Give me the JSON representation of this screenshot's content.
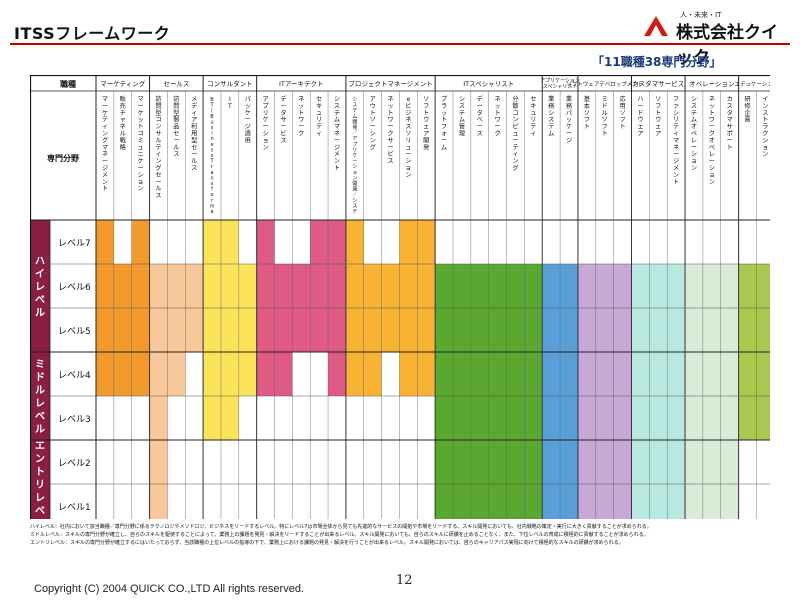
{
  "header": {
    "title": "ITSSフレームワーク",
    "subtitle": "「11職種38専門分野」",
    "logo_sub": "人・未来・IT",
    "logo_main": "株式会社クイック"
  },
  "table": {
    "corner_top": "職種",
    "corner_bottom": "専門分野",
    "job_types": [
      {
        "name": "マーケティング",
        "fields": [
          "マーケティングマネージメント",
          "販売チャネル戦略",
          "マーケットコミュニケーション"
        ]
      },
      {
        "name": "セールス",
        "fields": [
          "訪問型コンサルティングセールス",
          "訪問型製品セールス",
          "メディア利用型セールス"
        ]
      },
      {
        "name": "コンサルタント",
        "fields": [
          "BT(BusinessTransformation)",
          "IT",
          "パッケージ適用"
        ]
      },
      {
        "name": "ITアーキテクト",
        "fields": [
          "アプリケーション",
          "データサービス",
          "ネットワーク",
          "セキュリティ",
          "システムマネージメント"
        ]
      },
      {
        "name": "プロジェクトマネージメント",
        "fields": [
          "システム開発／アプリケーション開発／システムインテグレーション",
          "アウトソーシング",
          "ネットワークサービス",
          "eビジネスソリューション",
          "ソフトウェア開発"
        ]
      },
      {
        "name": "ITスペシャリスト",
        "fields": [
          "プラットフォーム",
          "システム管理",
          "データベース",
          "ネットワーク",
          "分散コンピューティング",
          "セキュリティ"
        ]
      },
      {
        "name": "アプリケーションスペシャリスト",
        "fields": [
          "業務システム",
          "業務パッケージ"
        ]
      },
      {
        "name": "ソフトウェアデベロップメント",
        "fields": [
          "基本ソフト",
          "ミドルソフト",
          "応用ソフト"
        ]
      },
      {
        "name": "カスタマサービス",
        "fields": [
          "ハードウェア",
          "ソフトウェア",
          "ファシリティマネージメント"
        ]
      },
      {
        "name": "オペレーション",
        "fields": [
          "システムオペレーション",
          "ネットワークオペレーション",
          "カスタマサポート"
        ]
      },
      {
        "name": "エデュケーション",
        "fields": [
          "研修企画",
          "インストラクション"
        ]
      }
    ],
    "level_groups": [
      {
        "name": "ハイレベル",
        "color": "#8a1f42",
        "levels": [
          "レベル7",
          "レベル6",
          "レベル5"
        ]
      },
      {
        "name": "ミドルレベル",
        "color": "#8a1f42",
        "levels": [
          "レベル4",
          "レベル3"
        ]
      },
      {
        "name": "エントリレベル",
        "color": "#8a1f42",
        "levels": [
          "レベル2",
          "レベル1"
        ]
      }
    ],
    "colors": {
      "marketing": "#f39a2c",
      "sales": "#f8c79a",
      "consultant": "#fbe35a",
      "architect": "#e05a86",
      "pm": "#f8b335",
      "it_specialist": "#5aa832",
      "app_specialist": "#5a9fd8",
      "software_dev": "#c8a8d4",
      "customer_service": "#b8e8e0",
      "operation": "#d8ecd8",
      "education": "#a8c850"
    }
  },
  "notes": [
    "ハイレベル：社内において該当職種／専門分野に係るテクノロジやメソドロジ、ビジネスをリードするレベル。特にレベル7は市場全体から見ても先進的なサービスの開拓や市場をリードする。スキル開発においても、社内戦略の策定・実行に大きく貢献することが求められる。",
    "ミドルレベル：スキルの専門分野が確立し、自らのスキルを駆使することによって、業務上の課題を発見・解決をリードすることが出来るレベル。スキル開発においても、自らのスキルに研鑽を止めることなく、また、下位レベルの育成に積極的に貢献することが求められる。",
    "エントリレベル：スキルの専門分野が確立するにはいたっておらず、当該職種の上位レベルの指導の下で、業務上における課題の発見・解決を行うことが出来るレベル。スキル開発においては、自らのキャリアパス実現に向けて積極的なスキルの研鑽が求められる。"
  ],
  "footer": {
    "copyright": "Copyright (C) 2004 QUICK CO.,LTD All rights reserved.",
    "page_number": "12"
  }
}
